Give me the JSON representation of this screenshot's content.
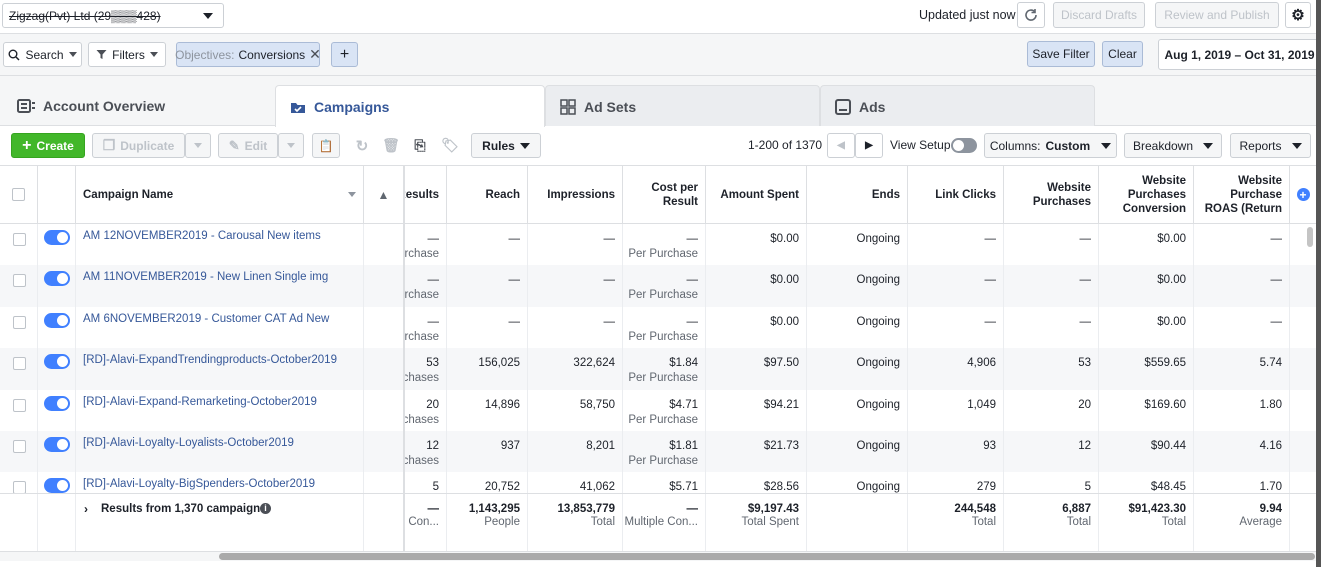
{
  "top": {
    "account_name": "Zigzag(Pvt) Ltd (29▒▒▒428)",
    "updated": "Updated just now",
    "discard": "Discard Drafts",
    "review": "Review and Publish"
  },
  "filters": {
    "search": "Search",
    "filters": "Filters",
    "chip_key": "Objectives:",
    "chip_value": "Conversions",
    "add": "+",
    "save_filter": "Save Filter",
    "clear": "Clear",
    "date_range": "Aug 1, 2019 – Oct 31, 2019"
  },
  "tabs": [
    {
      "label": "Account Overview"
    },
    {
      "label": "Campaigns"
    },
    {
      "label": "Ad Sets"
    },
    {
      "label": "Ads"
    }
  ],
  "toolbar": {
    "create": "Create",
    "duplicate": "Duplicate",
    "edit": "Edit",
    "rules": "Rules",
    "pagination": "1-200 of 1370",
    "view_setup": "View Setup",
    "columns_prefix": "Columns:",
    "columns_value": "Custom",
    "breakdown": "Breakdown",
    "reports": "Reports"
  },
  "table": {
    "headers": {
      "name": "Campaign Name",
      "results": "Results",
      "reach": "Reach",
      "impressions": "Impressions",
      "cpr": "Cost per Result",
      "spent": "Amount Spent",
      "ends": "Ends",
      "clicks": "Link Clicks",
      "purchases": "Website Purchases",
      "conv": "Website Purchases Conversion",
      "roas": "Website Purchase ROAS (Return"
    },
    "rows": [
      {
        "name": "AM 12NOVEMBER2019 - Carousal New items",
        "results": "—",
        "results_sub": "urchase",
        "reach": "—",
        "impressions": "—",
        "cpr": "—",
        "cpr_sub": "Per Purchase",
        "spent": "$0.00",
        "ends": "Ongoing",
        "clicks": "—",
        "purchases": "—",
        "conv": "$0.00",
        "roas": "—"
      },
      {
        "name": "AM 11NOVEMBER2019 - New Linen Single img",
        "results": "—",
        "results_sub": "urchase",
        "reach": "—",
        "impressions": "—",
        "cpr": "—",
        "cpr_sub": "Per Purchase",
        "spent": "$0.00",
        "ends": "Ongoing",
        "clicks": "—",
        "purchases": "—",
        "conv": "$0.00",
        "roas": "—"
      },
      {
        "name": "AM 6NOVEMBER2019 - Customer CAT Ad New",
        "results": "—",
        "results_sub": "urchase",
        "reach": "—",
        "impressions": "—",
        "cpr": "—",
        "cpr_sub": "Per Purchase",
        "spent": "$0.00",
        "ends": "Ongoing",
        "clicks": "—",
        "purchases": "—",
        "conv": "$0.00",
        "roas": "—"
      },
      {
        "name": "[RD]-Alavi-ExpandTrendingproducts-October2019",
        "results": "53",
        "results_sub": "chases",
        "reach": "156,025",
        "impressions": "322,624",
        "cpr": "$1.84",
        "cpr_sub": "Per Purchase",
        "spent": "$97.50",
        "ends": "Ongoing",
        "clicks": "4,906",
        "purchases": "53",
        "conv": "$559.65",
        "roas": "5.74"
      },
      {
        "name": "[RD]-Alavi-Expand-Remarketing-October2019",
        "results": "20",
        "results_sub": "chases",
        "reach": "14,896",
        "impressions": "58,750",
        "cpr": "$4.71",
        "cpr_sub": "Per Purchase",
        "spent": "$94.21",
        "ends": "Ongoing",
        "clicks": "1,049",
        "purchases": "20",
        "conv": "$169.60",
        "roas": "1.80"
      },
      {
        "name": "[RD]-Alavi-Loyalty-Loyalists-October2019",
        "results": "12",
        "results_sub": "chases",
        "reach": "937",
        "impressions": "8,201",
        "cpr": "$1.81",
        "cpr_sub": "Per Purchase",
        "spent": "$21.73",
        "ends": "Ongoing",
        "clicks": "93",
        "purchases": "12",
        "conv": "$90.44",
        "roas": "4.16"
      },
      {
        "name": "[RD]-Alavi-Loyalty-BigSpenders-October2019",
        "results": "5",
        "results_sub": "",
        "reach": "20,752",
        "impressions": "41,062",
        "cpr": "$5.71",
        "cpr_sub": "",
        "spent": "$28.56",
        "ends": "Ongoing",
        "clicks": "279",
        "purchases": "5",
        "conv": "$48.45",
        "roas": "1.70"
      }
    ],
    "totals": {
      "label": "Results from 1,370 campaigns",
      "results": "—",
      "results_sub": "Con...",
      "reach": "1,143,295",
      "reach_sub": "People",
      "impressions": "13,853,779",
      "impressions_sub": "Total",
      "cpr": "—",
      "cpr_sub": "Multiple Con...",
      "spent": "$9,197.43",
      "spent_sub": "Total Spent",
      "clicks": "244,548",
      "clicks_sub": "Total",
      "purchases": "6,887",
      "purchases_sub": "Total",
      "conv": "$91,423.30",
      "conv_sub": "Total",
      "roas": "9.94",
      "roas_sub": "Average"
    }
  },
  "colors": {
    "primary": "#4080ff",
    "link": "#365899",
    "create": "#42b72a"
  }
}
